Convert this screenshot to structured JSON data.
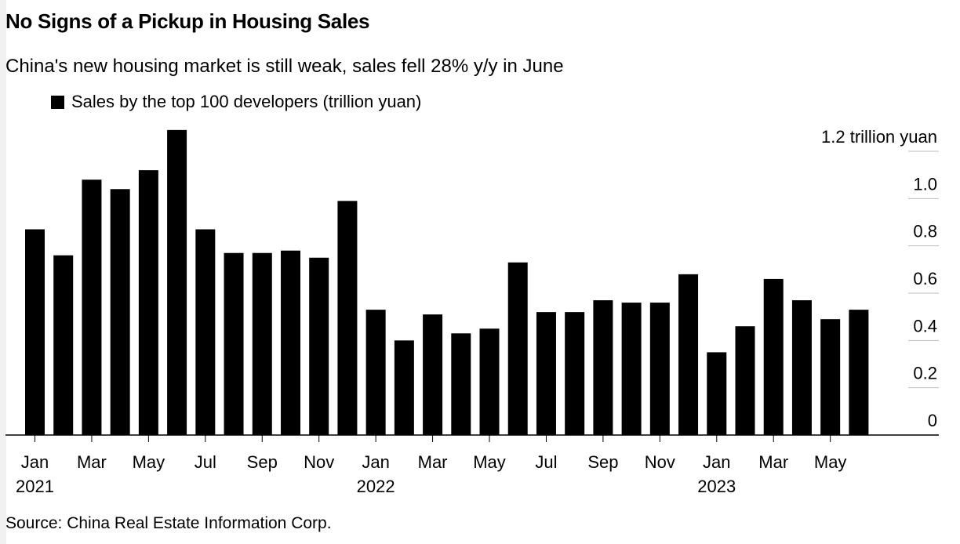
{
  "title": "No Signs of a Pickup in Housing Sales",
  "subtitle": "China's new housing market is still weak, sales fell 28% y/y in June",
  "source": "Source: China Real Estate Information Corp.",
  "colors": {
    "bar": "#000000",
    "grid": "#bdbdbd",
    "axis": "#000000"
  },
  "chart_data": {
    "type": "bar",
    "title": "No Signs of a Pickup in Housing Sales",
    "legend": [
      "Sales by the top 100 developers (trillion yuan)"
    ],
    "legend_position": "top-left",
    "y_axis_position": "right",
    "ylim": [
      0,
      1.2
    ],
    "y_ticks": [
      0,
      0.2,
      0.4,
      0.6,
      0.8,
      1.0,
      1.2
    ],
    "y_tick_labels": [
      "0",
      "0.2",
      "0.4",
      "0.6",
      "0.8",
      "1.0",
      "1.2 trillion yuan"
    ],
    "categories": [
      "Jan 2021",
      "Feb 2021",
      "Mar 2021",
      "Apr 2021",
      "May 2021",
      "Jun 2021",
      "Jul 2021",
      "Aug 2021",
      "Sep 2021",
      "Oct 2021",
      "Nov 2021",
      "Dec 2021",
      "Jan 2022",
      "Feb 2022",
      "Mar 2022",
      "Apr 2022",
      "May 2022",
      "Jun 2022",
      "Jul 2022",
      "Aug 2022",
      "Sep 2022",
      "Oct 2022",
      "Nov 2022",
      "Dec 2022",
      "Jan 2023",
      "Feb 2023",
      "Mar 2023",
      "Apr 2023",
      "May 2023",
      "Jun 2023"
    ],
    "x_tick_labels": [
      {
        "index": 0,
        "month": "Jan",
        "year": "2021"
      },
      {
        "index": 2,
        "month": "Mar",
        "year": ""
      },
      {
        "index": 4,
        "month": "May",
        "year": ""
      },
      {
        "index": 6,
        "month": "Jul",
        "year": ""
      },
      {
        "index": 8,
        "month": "Sep",
        "year": ""
      },
      {
        "index": 10,
        "month": "Nov",
        "year": ""
      },
      {
        "index": 12,
        "month": "Jan",
        "year": "2022"
      },
      {
        "index": 14,
        "month": "Mar",
        "year": ""
      },
      {
        "index": 16,
        "month": "May",
        "year": ""
      },
      {
        "index": 18,
        "month": "Jul",
        "year": ""
      },
      {
        "index": 20,
        "month": "Sep",
        "year": ""
      },
      {
        "index": 22,
        "month": "Nov",
        "year": ""
      },
      {
        "index": 24,
        "month": "Jan",
        "year": "2023"
      },
      {
        "index": 26,
        "month": "Mar",
        "year": ""
      },
      {
        "index": 28,
        "month": "May",
        "year": ""
      }
    ],
    "series": [
      {
        "name": "Sales by the top 100 developers (trillion yuan)",
        "values": [
          0.87,
          0.76,
          1.08,
          1.04,
          1.12,
          1.29,
          0.87,
          0.77,
          0.77,
          0.78,
          0.75,
          0.99,
          0.53,
          0.4,
          0.51,
          0.43,
          0.45,
          0.73,
          0.52,
          0.52,
          0.57,
          0.56,
          0.56,
          0.68,
          0.35,
          0.46,
          0.66,
          0.57,
          0.49,
          0.53
        ]
      }
    ],
    "grid": true
  }
}
